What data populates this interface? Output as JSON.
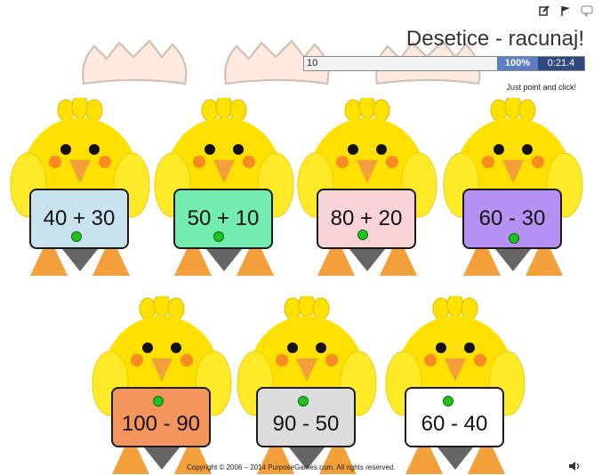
{
  "game": {
    "title": "Desetice - racunaj!",
    "answer_text": "10",
    "progress_label": "100%",
    "progress": 1.0,
    "timer": "0:21.4",
    "hint": "Just point and click!",
    "footer": "Copyright © 2006 – 2014 PurposeGames.com. All rights reserved."
  },
  "toolbar_icons": [
    "edit-icon",
    "flag-icon",
    "comment-icon"
  ],
  "chicks": [
    {
      "equation": "40 + 30",
      "sign_color": "#c8e2ee"
    },
    {
      "equation": "50 + 10",
      "sign_color": "#74ecb0"
    },
    {
      "equation": "80 + 20",
      "sign_color": "#f8d4d8"
    },
    {
      "equation": "60 - 30",
      "sign_color": "#b591f3"
    },
    {
      "equation": "100 - 90",
      "sign_color": "#f5955e"
    },
    {
      "equation": "90 - 50",
      "sign_color": "#dcdcdc"
    },
    {
      "equation": "60 - 40",
      "sign_color": "#ffffff"
    }
  ]
}
